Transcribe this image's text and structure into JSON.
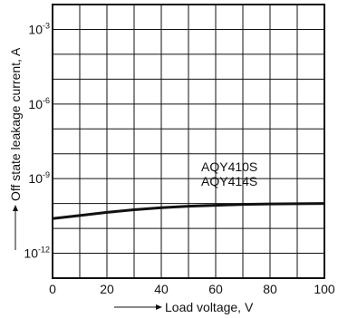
{
  "chart_data": {
    "type": "line",
    "title": "",
    "xlabel": "Load voltage, V",
    "ylabel": "Off state leakage current, A",
    "xlim": [
      0,
      100
    ],
    "ylim_exponent": [
      -13,
      -2
    ],
    "y_scale": "log",
    "x_ticks": [
      "0",
      "20",
      "40",
      "60",
      "80",
      "100"
    ],
    "y_ticks": [
      {
        "base": "10",
        "exp": "-3"
      },
      {
        "base": "10",
        "exp": "-6"
      },
      {
        "base": "10",
        "exp": "-9"
      },
      {
        "base": "10",
        "exp": "-12"
      }
    ],
    "grid": true,
    "series": [
      {
        "name": "AQY410S AQY414S",
        "x": [
          0,
          10,
          20,
          30,
          40,
          50,
          60,
          70,
          80,
          90,
          100
        ],
        "y": [
          2.5e-11,
          3.3e-11,
          4.4e-11,
          5.6e-11,
          6.8e-11,
          7.8e-11,
          8.5e-11,
          9.2e-11,
          9.6e-11,
          9.8e-11,
          1e-10
        ]
      }
    ],
    "annotations": [
      "AQY410S",
      "AQY414S"
    ]
  }
}
